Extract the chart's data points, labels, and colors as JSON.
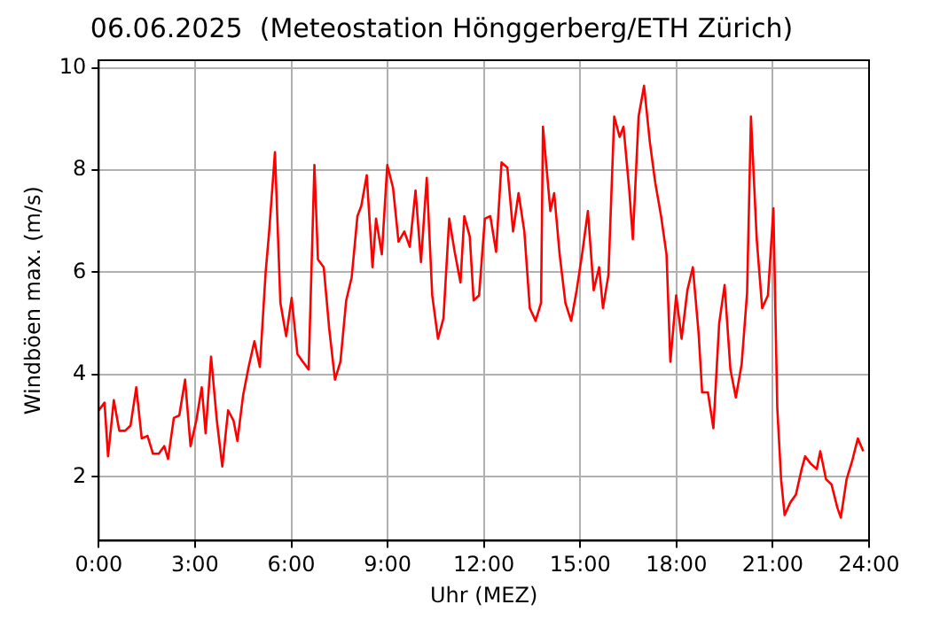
{
  "chart_data": {
    "type": "line",
    "title": "06.06.2025  (Meteostation Hönggerberg/ETH Zürich)",
    "xlabel": "Uhr (MEZ)",
    "ylabel": "Windböen max. (m/s)",
    "x": [
      0,
      0.18,
      0.29,
      0.47,
      0.64,
      0.82,
      0.99,
      1.17,
      1.34,
      1.52,
      1.69,
      1.87,
      2.04,
      2.16,
      2.34,
      2.51,
      2.69,
      2.86,
      3.04,
      3.21,
      3.33,
      3.5,
      3.68,
      3.85,
      4.03,
      4.2,
      4.32,
      4.5,
      4.67,
      4.85,
      5.02,
      5.2,
      5.31,
      5.49,
      5.66,
      5.84,
      6.01,
      6.19,
      6.36,
      6.54,
      6.72,
      6.83,
      7.01,
      7.18,
      7.36,
      7.53,
      7.71,
      7.88,
      8.06,
      8.18,
      8.35,
      8.53,
      8.64,
      8.82,
      8.99,
      9.17,
      9.34,
      9.52,
      9.69,
      9.87,
      10.04,
      10.22,
      10.39,
      10.57,
      10.74,
      10.92,
      11.09,
      11.27,
      11.39,
      11.56,
      11.68,
      11.85,
      12.03,
      12.2,
      12.38,
      12.55,
      12.73,
      12.91,
      13.08,
      13.26,
      13.43,
      13.61,
      13.78,
      13.84,
      14.07,
      14.19,
      14.36,
      14.54,
      14.72,
      14.89,
      15.07,
      15.24,
      15.42,
      15.59,
      15.71,
      15.88,
      16.06,
      16.23,
      16.35,
      16.53,
      16.64,
      16.82,
      16.99,
      17.17,
      17.34,
      17.52,
      17.69,
      17.81,
      17.99,
      18.16,
      18.34,
      18.51,
      18.69,
      18.8,
      18.98,
      19.15,
      19.33,
      19.5,
      19.68,
      19.85,
      20.03,
      20.2,
      20.32,
      20.5,
      20.67,
      20.85,
      21.02,
      21.14,
      21.26,
      21.37,
      21.55,
      21.72,
      21.9,
      22.01,
      22.19,
      22.37,
      22.48,
      22.66,
      22.83,
      23.01,
      23.12,
      23.3,
      23.47,
      23.65,
      23.82
    ],
    "series": [
      {
        "color": "#ff0000",
        "values": [
          3.3,
          3.45,
          2.4,
          3.5,
          2.9,
          2.9,
          3.0,
          3.75,
          2.75,
          2.8,
          2.45,
          2.45,
          2.6,
          2.35,
          3.15,
          3.2,
          3.9,
          2.6,
          3.1,
          3.75,
          2.85,
          4.35,
          3.1,
          2.2,
          3.3,
          3.1,
          2.7,
          3.6,
          4.15,
          4.65,
          4.15,
          6.0,
          6.8,
          8.35,
          5.4,
          4.75,
          5.5,
          4.4,
          4.25,
          4.1,
          8.1,
          6.25,
          6.1,
          4.9,
          3.9,
          4.25,
          5.45,
          5.9,
          7.1,
          7.3,
          7.9,
          6.1,
          7.05,
          6.35,
          8.1,
          7.65,
          6.6,
          6.8,
          6.5,
          7.6,
          6.2,
          7.85,
          5.55,
          4.7,
          5.1,
          7.05,
          6.4,
          5.8,
          7.1,
          6.7,
          5.45,
          5.55,
          7.05,
          7.1,
          6.4,
          8.15,
          8.05,
          6.8,
          7.55,
          6.8,
          5.3,
          5.05,
          5.4,
          8.85,
          7.2,
          7.55,
          6.35,
          5.4,
          5.05,
          5.65,
          6.4,
          7.2,
          5.65,
          6.1,
          5.3,
          5.95,
          9.05,
          8.65,
          8.85,
          7.6,
          6.65,
          9.05,
          9.65,
          8.55,
          7.75,
          7.1,
          6.35,
          4.25,
          5.55,
          4.7,
          5.65,
          6.1,
          4.8,
          3.65,
          3.65,
          2.95,
          5.0,
          5.75,
          4.1,
          3.55,
          4.2,
          5.6,
          9.05,
          6.65,
          5.3,
          5.55,
          7.25,
          3.35,
          1.95,
          1.25,
          1.5,
          1.65,
          2.15,
          2.4,
          2.25,
          2.15,
          2.5,
          1.95,
          1.85,
          1.4,
          1.2,
          1.95,
          2.3,
          2.75,
          2.5
        ]
      }
    ],
    "xlim": [
      0,
      24
    ],
    "xticks": [
      {
        "value": 0,
        "label": "0:00"
      },
      {
        "value": 3,
        "label": "3:00"
      },
      {
        "value": 6,
        "label": "6:00"
      },
      {
        "value": 9,
        "label": "9:00"
      },
      {
        "value": 12,
        "label": "12:00"
      },
      {
        "value": 15,
        "label": "15:00"
      },
      {
        "value": 18,
        "label": "18:00"
      },
      {
        "value": 21,
        "label": "21:00"
      },
      {
        "value": 24,
        "label": "24:00"
      }
    ],
    "ylim": [
      0.75,
      10.15
    ],
    "yticks": [
      2,
      4,
      6,
      8,
      10
    ],
    "grid": true,
    "marker": "none",
    "line_style": "solid"
  }
}
